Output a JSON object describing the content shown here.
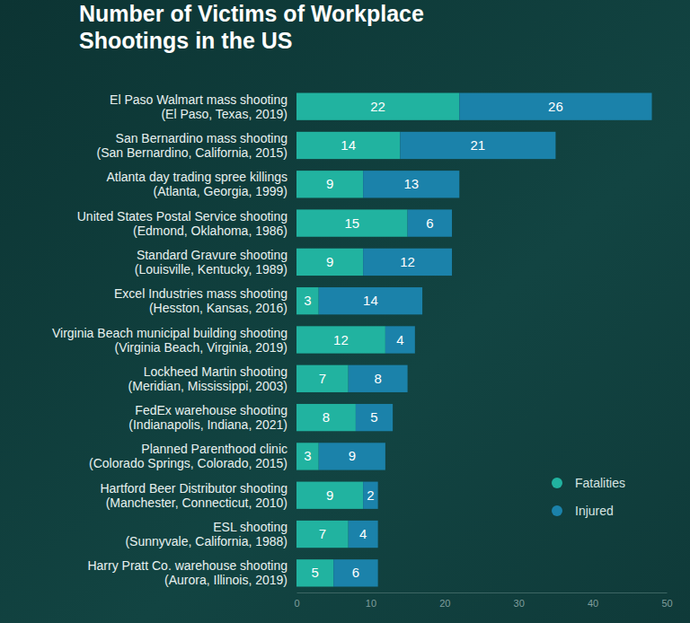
{
  "chart_data": {
    "type": "bar",
    "title": "Number of Victims of Workplace Shootings in the US",
    "orientation": "horizontal",
    "stacked": true,
    "data_labels": true,
    "grid": false,
    "legend": "right",
    "categories": [
      "El Paso Walmart mass shooting (El Paso, Texas, 2019)",
      "San Bernardino mass shooting (San Bernardino, California, 2015)",
      "Atlanta day trading spree killings (Atlanta, Georgia, 1999)",
      "United States Postal Service shooting (Edmond, Oklahoma, 1986)",
      "Standard Gravure shooting (Louisville, Kentucky, 1989)",
      "Excel Industries mass shooting (Hesston, Kansas, 2016)",
      "Virginia Beach municipal building shooting (Virginia Beach, Virginia, 2019)",
      "Lockheed Martin shooting (Meridian, Mississippi, 2003)",
      "FedEx warehouse shooting (Indianapolis, Indiana, 2021)",
      "Planned Parenthood clinic (Colorado Springs, Colorado, 2015)",
      "Hartford Beer Distributor shooting (Manchester, Connecticut, 2010)",
      "ESL shooting (Sunnyvale, California, 1988)",
      "Harry Pratt Co. warehouse shooting (Aurora, Illinois, 2019)"
    ],
    "series": [
      {
        "name": "Fatalities",
        "color": "#21b3a0",
        "values": [
          22,
          14,
          9,
          15,
          9,
          3,
          12,
          7,
          8,
          3,
          9,
          7,
          5
        ]
      },
      {
        "name": "Injured",
        "color": "#1b82aa",
        "values": [
          26,
          21,
          13,
          6,
          12,
          14,
          4,
          8,
          5,
          9,
          2,
          4,
          6
        ]
      }
    ],
    "xlim": [
      0,
      50
    ],
    "xticks": [
      0,
      10,
      20,
      30,
      40,
      50
    ]
  }
}
